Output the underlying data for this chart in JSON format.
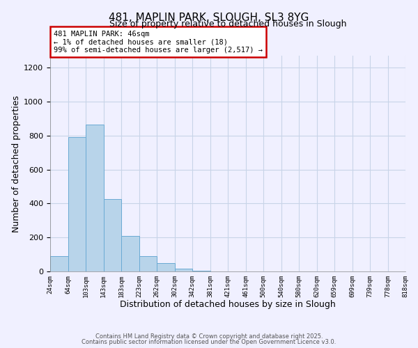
{
  "title": "481, MAPLIN PARK, SLOUGH, SL3 8YG",
  "subtitle": "Size of property relative to detached houses in Slough",
  "xlabel": "Distribution of detached houses by size in Slough",
  "ylabel": "Number of detached properties",
  "bar_values": [
    90,
    790,
    865,
    425,
    210,
    90,
    50,
    18,
    5,
    0,
    0,
    0,
    0,
    0,
    0,
    0,
    0,
    0,
    0,
    0
  ],
  "bar_labels": [
    "24sqm",
    "64sqm",
    "103sqm",
    "143sqm",
    "183sqm",
    "223sqm",
    "262sqm",
    "302sqm",
    "342sqm",
    "381sqm",
    "421sqm",
    "461sqm",
    "500sqm",
    "540sqm",
    "580sqm",
    "620sqm",
    "659sqm",
    "699sqm",
    "739sqm",
    "778sqm",
    "818sqm"
  ],
  "bar_color": "#b8d4ea",
  "bar_edge_color": "#6aaad4",
  "ylim": [
    0,
    1270
  ],
  "yticks": [
    0,
    200,
    400,
    600,
    800,
    1000,
    1200
  ],
  "annotation_text": "481 MAPLIN PARK: 46sqm\n← 1% of detached houses are smaller (18)\n99% of semi-detached houses are larger (2,517) →",
  "annotation_box_color": "#ffffff",
  "annotation_box_edge_color": "#cc0000",
  "bg_color": "#f0f0ff",
  "grid_color": "#c8d4e8",
  "footer1": "Contains HM Land Registry data © Crown copyright and database right 2025.",
  "footer2": "Contains public sector information licensed under the Open Government Licence v3.0.",
  "num_bars": 20
}
